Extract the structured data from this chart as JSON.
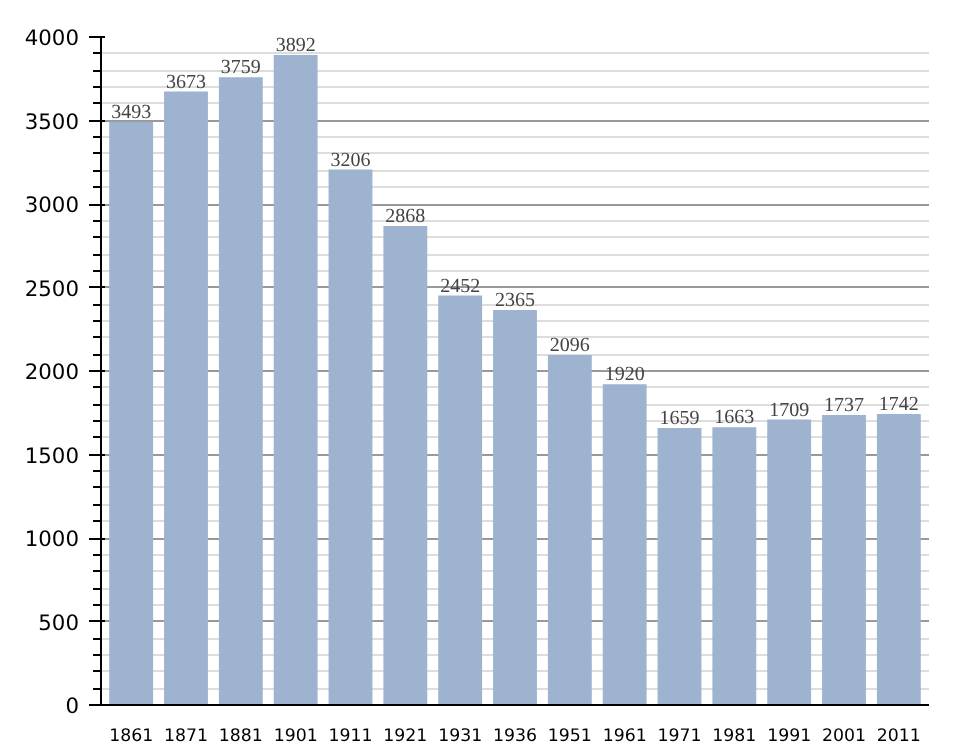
{
  "chart_data": {
    "type": "bar",
    "categories": [
      "1861",
      "1871",
      "1881",
      "1901",
      "1911",
      "1921",
      "1931",
      "1936",
      "1951",
      "1961",
      "1971",
      "1981",
      "1991",
      "2001",
      "2011"
    ],
    "values": [
      3493,
      3673,
      3759,
      3892,
      3206,
      2868,
      2452,
      2365,
      2096,
      1920,
      1659,
      1663,
      1709,
      1737,
      1742
    ],
    "color": "#9db3cf",
    "ylim": [
      0,
      4000
    ],
    "yticks": [
      0,
      500,
      1000,
      1500,
      2000,
      2500,
      3000,
      3500,
      4000
    ],
    "grid": "y",
    "data_labels": true
  }
}
